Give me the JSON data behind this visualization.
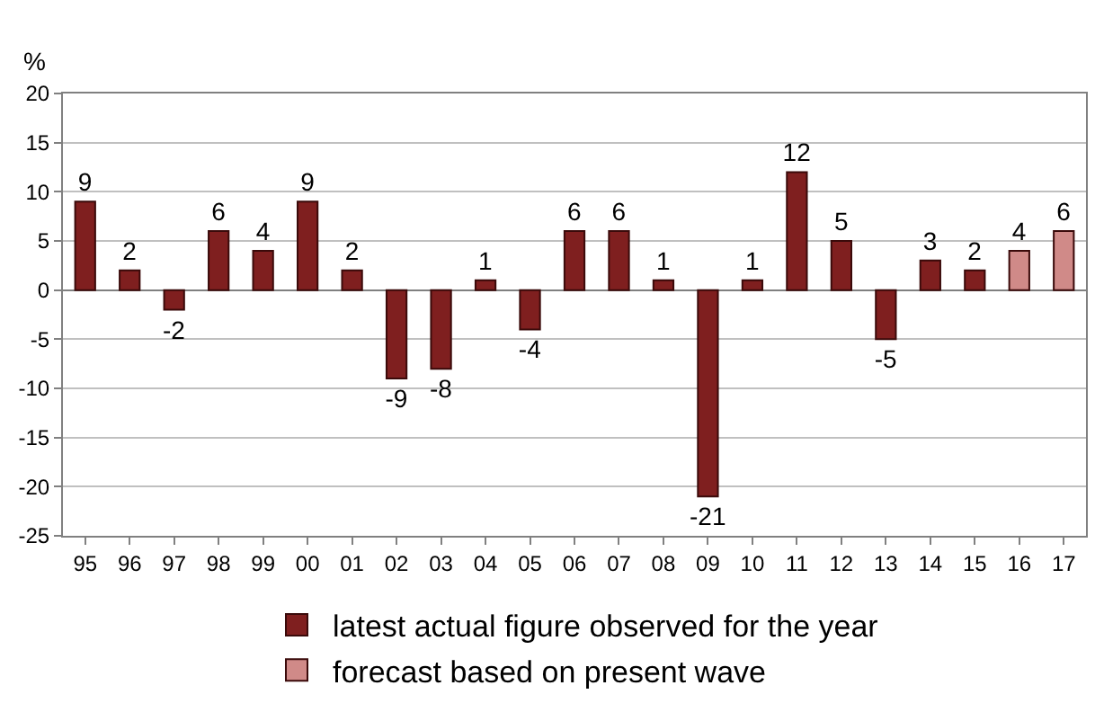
{
  "chart_data": {
    "type": "bar",
    "ylabel": "%",
    "categories": [
      "95",
      "96",
      "97",
      "98",
      "99",
      "00",
      "01",
      "02",
      "03",
      "04",
      "05",
      "06",
      "07",
      "08",
      "09",
      "10",
      "11",
      "12",
      "13",
      "14",
      "15",
      "16",
      "17"
    ],
    "series": [
      {
        "name": "latest actual figure observed for the year",
        "color": "#7f1f1f",
        "values": [
          9,
          2,
          -2,
          6,
          4,
          9,
          2,
          -9,
          -8,
          1,
          -4,
          6,
          6,
          1,
          -21,
          1,
          12,
          5,
          -5,
          3,
          2,
          null,
          null
        ]
      },
      {
        "name": "forecast based on present wave",
        "color": "#d08a88",
        "values": [
          null,
          null,
          null,
          null,
          null,
          null,
          null,
          null,
          null,
          null,
          null,
          null,
          null,
          null,
          null,
          null,
          null,
          null,
          null,
          null,
          null,
          4,
          6
        ]
      }
    ],
    "ylim": [
      -25,
      20
    ],
    "yticks": [
      -25,
      -20,
      -15,
      -10,
      -5,
      0,
      5,
      10,
      15,
      20
    ],
    "grid": "y",
    "legend": "bottom",
    "data_labels": true
  }
}
